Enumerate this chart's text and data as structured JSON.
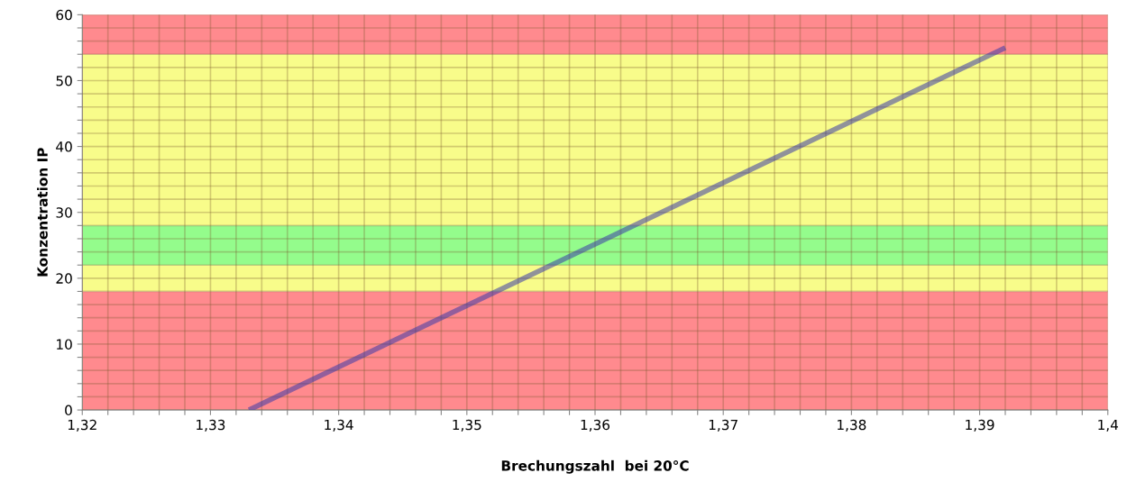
{
  "chart_data": {
    "type": "line",
    "xlabel": "Brechungszahl  bei 20°C",
    "ylabel": "Konzentration IP",
    "x": [
      1.333,
      1.392
    ],
    "series": [
      {
        "color": "#3a3aa8",
        "values": [
          0,
          55
        ]
      }
    ],
    "xlim": [
      1.32,
      1.4
    ],
    "xticks": [
      {
        "value": 1.32,
        "label": "1,32"
      },
      {
        "value": 1.322,
        "label": null
      },
      {
        "value": 1.324,
        "label": null
      },
      {
        "value": 1.326,
        "label": null
      },
      {
        "value": 1.328,
        "label": null
      },
      {
        "value": 1.33,
        "label": "1,33"
      },
      {
        "value": 1.332,
        "label": null
      },
      {
        "value": 1.334,
        "label": null
      },
      {
        "value": 1.336,
        "label": null
      },
      {
        "value": 1.338,
        "label": null
      },
      {
        "value": 1.34,
        "label": "1,34"
      },
      {
        "value": 1.342,
        "label": null
      },
      {
        "value": 1.344,
        "label": null
      },
      {
        "value": 1.346,
        "label": null
      },
      {
        "value": 1.348,
        "label": null
      },
      {
        "value": 1.35,
        "label": "1,35"
      },
      {
        "value": 1.352,
        "label": null
      },
      {
        "value": 1.354,
        "label": null
      },
      {
        "value": 1.356,
        "label": null
      },
      {
        "value": 1.358,
        "label": null
      },
      {
        "value": 1.36,
        "label": "1,36"
      },
      {
        "value": 1.362,
        "label": null
      },
      {
        "value": 1.364,
        "label": null
      },
      {
        "value": 1.366,
        "label": null
      },
      {
        "value": 1.368,
        "label": null
      },
      {
        "value": 1.37,
        "label": "1,37"
      },
      {
        "value": 1.372,
        "label": null
      },
      {
        "value": 1.374,
        "label": null
      },
      {
        "value": 1.376,
        "label": null
      },
      {
        "value": 1.378,
        "label": null
      },
      {
        "value": 1.38,
        "label": "1,38"
      },
      {
        "value": 1.382,
        "label": null
      },
      {
        "value": 1.384,
        "label": null
      },
      {
        "value": 1.386,
        "label": null
      },
      {
        "value": 1.388,
        "label": null
      },
      {
        "value": 1.39,
        "label": "1,39"
      },
      {
        "value": 1.392,
        "label": null
      },
      {
        "value": 1.394,
        "label": null
      },
      {
        "value": 1.396,
        "label": null
      },
      {
        "value": 1.398,
        "label": null
      },
      {
        "value": 1.4,
        "label": "1,4"
      }
    ],
    "ylim": [
      0,
      60
    ],
    "yticks": [
      0,
      {
        "value": 2,
        "label": null
      },
      {
        "value": 4,
        "label": null
      },
      {
        "value": 6,
        "label": null
      },
      {
        "value": 8,
        "label": null
      },
      10,
      {
        "value": 12,
        "label": null
      },
      {
        "value": 14,
        "label": null
      },
      {
        "value": 16,
        "label": null
      },
      {
        "value": 18,
        "label": null
      },
      20,
      {
        "value": 22,
        "label": null
      },
      {
        "value": 24,
        "label": null
      },
      {
        "value": 26,
        "label": null
      },
      {
        "value": 28,
        "label": null
      },
      30,
      {
        "value": 32,
        "label": null
      },
      {
        "value": 34,
        "label": null
      },
      {
        "value": 36,
        "label": null
      },
      {
        "value": 38,
        "label": null
      },
      40,
      {
        "value": 42,
        "label": null
      },
      {
        "value": 44,
        "label": null
      },
      {
        "value": 46,
        "label": null
      },
      {
        "value": 48,
        "label": null
      },
      50,
      {
        "value": 52,
        "label": null
      },
      {
        "value": 54,
        "label": null
      },
      {
        "value": 56,
        "label": null
      },
      {
        "value": 58,
        "label": null
      },
      60
    ],
    "grid": true,
    "bands": [
      {
        "axis": "y",
        "from": 0,
        "to": 18,
        "color": "#ff8a8e"
      },
      {
        "axis": "y",
        "from": 18,
        "to": 22,
        "color": "#f8fc8a"
      },
      {
        "axis": "y",
        "from": 22,
        "to": 28,
        "color": "#94fc8c"
      },
      {
        "axis": "y",
        "from": 28,
        "to": 54,
        "color": "#f8fc8a"
      },
      {
        "axis": "y",
        "from": 54,
        "to": 60,
        "color": "#ff8a8e"
      }
    ]
  }
}
